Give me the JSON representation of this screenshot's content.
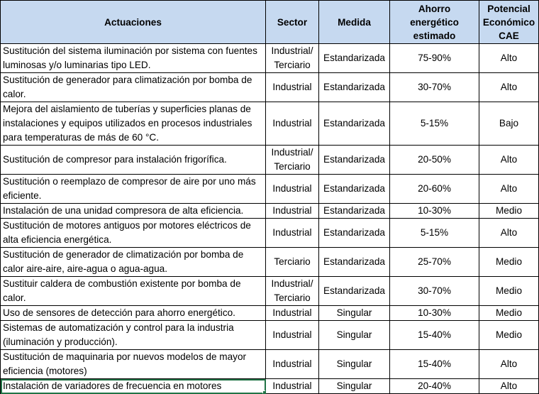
{
  "table": {
    "headers": {
      "actuaciones": "Actuaciones",
      "sector": "Sector",
      "medida": "Medida",
      "ahorro": [
        "Ahorro",
        "energético",
        "estimado"
      ],
      "potencial": [
        "Potencial",
        "Económico",
        "CAE"
      ]
    },
    "rows": [
      {
        "actuacion": "Sustitución del sistema iluminación por sistema con fuentes luminosas y/o luminarias tipo LED.",
        "sector": [
          "Industrial/",
          "Terciario"
        ],
        "medida": "Estandarizada",
        "ahorro": "75-90%",
        "potencial": "Alto"
      },
      {
        "actuacion": "Sustitución de generador para climatización por bomba de calor.",
        "sector": [
          "Industrial"
        ],
        "medida": "Estandarizada",
        "ahorro": "30-70%",
        "potencial": "Alto"
      },
      {
        "actuacion": "Mejora del aislamiento de tuberías y superficies planas de instalaciones y equipos utilizados en procesos industriales para temperaturas de más de 60 °C.",
        "sector": [
          "Industrial"
        ],
        "medida": "Estandarizada",
        "ahorro": "5-15%",
        "potencial": "Bajo"
      },
      {
        "actuacion": "Sustitución de compresor para instalación frigorífica.",
        "sector": [
          "Industrial/",
          "Terciario"
        ],
        "medida": "Estandarizada",
        "ahorro": "20-50%",
        "potencial": "Alto"
      },
      {
        "actuacion": "Sustitución o reemplazo de compresor de aire por uno más eficiente.",
        "sector": [
          "Industrial"
        ],
        "medida": "Estandarizada",
        "ahorro": "20-60%",
        "potencial": "Alto"
      },
      {
        "actuacion": "Instalación de una unidad compresora de alta eficiencia.",
        "sector": [
          "Industrial"
        ],
        "medida": "Estandarizada",
        "ahorro": "10-30%",
        "potencial": "Medio"
      },
      {
        "actuacion": "Sustitución de motores antiguos por motores eléctricos de alta eficiencia energética.",
        "sector": [
          "Industrial"
        ],
        "medida": "Estandarizada",
        "ahorro": "5-15%",
        "potencial": "Alto"
      },
      {
        "actuacion": "Sustitución de generador de climatización por bomba de calor aire-aire, aire-agua o agua-agua.",
        "sector": [
          "Terciario"
        ],
        "medida": "Estandarizada",
        "ahorro": "25-70%",
        "potencial": "Medio"
      },
      {
        "actuacion": "Sustituir caldera de combustión existente por bomba de calor.",
        "sector": [
          "Industrial/",
          "Terciario"
        ],
        "medida": "Estandarizada",
        "ahorro": "30-70%",
        "potencial": "Medio"
      },
      {
        "actuacion": "Uso de sensores de detección para ahorro energético.",
        "sector": [
          "Industrial"
        ],
        "medida": "Singular",
        "ahorro": "10-30%",
        "potencial": "Medio"
      },
      {
        "actuacion": "Sistemas de automatización y control para la industria (iluminación y producción).",
        "sector": [
          "Industrial"
        ],
        "medida": "Singular",
        "ahorro": "15-40%",
        "potencial": "Medio"
      },
      {
        "actuacion": "Sustitución de maquinaria por nuevos modelos de mayor eficiencia (motores)",
        "sector": [
          "Industrial"
        ],
        "medida": "Singular",
        "ahorro": "15-40%",
        "potencial": "Alto"
      },
      {
        "actuacion": "Instalación de variadores de frecuencia en motores",
        "sector": [
          "Industrial"
        ],
        "medida": "Singular",
        "ahorro": "20-40%",
        "potencial": "Alto"
      }
    ]
  }
}
